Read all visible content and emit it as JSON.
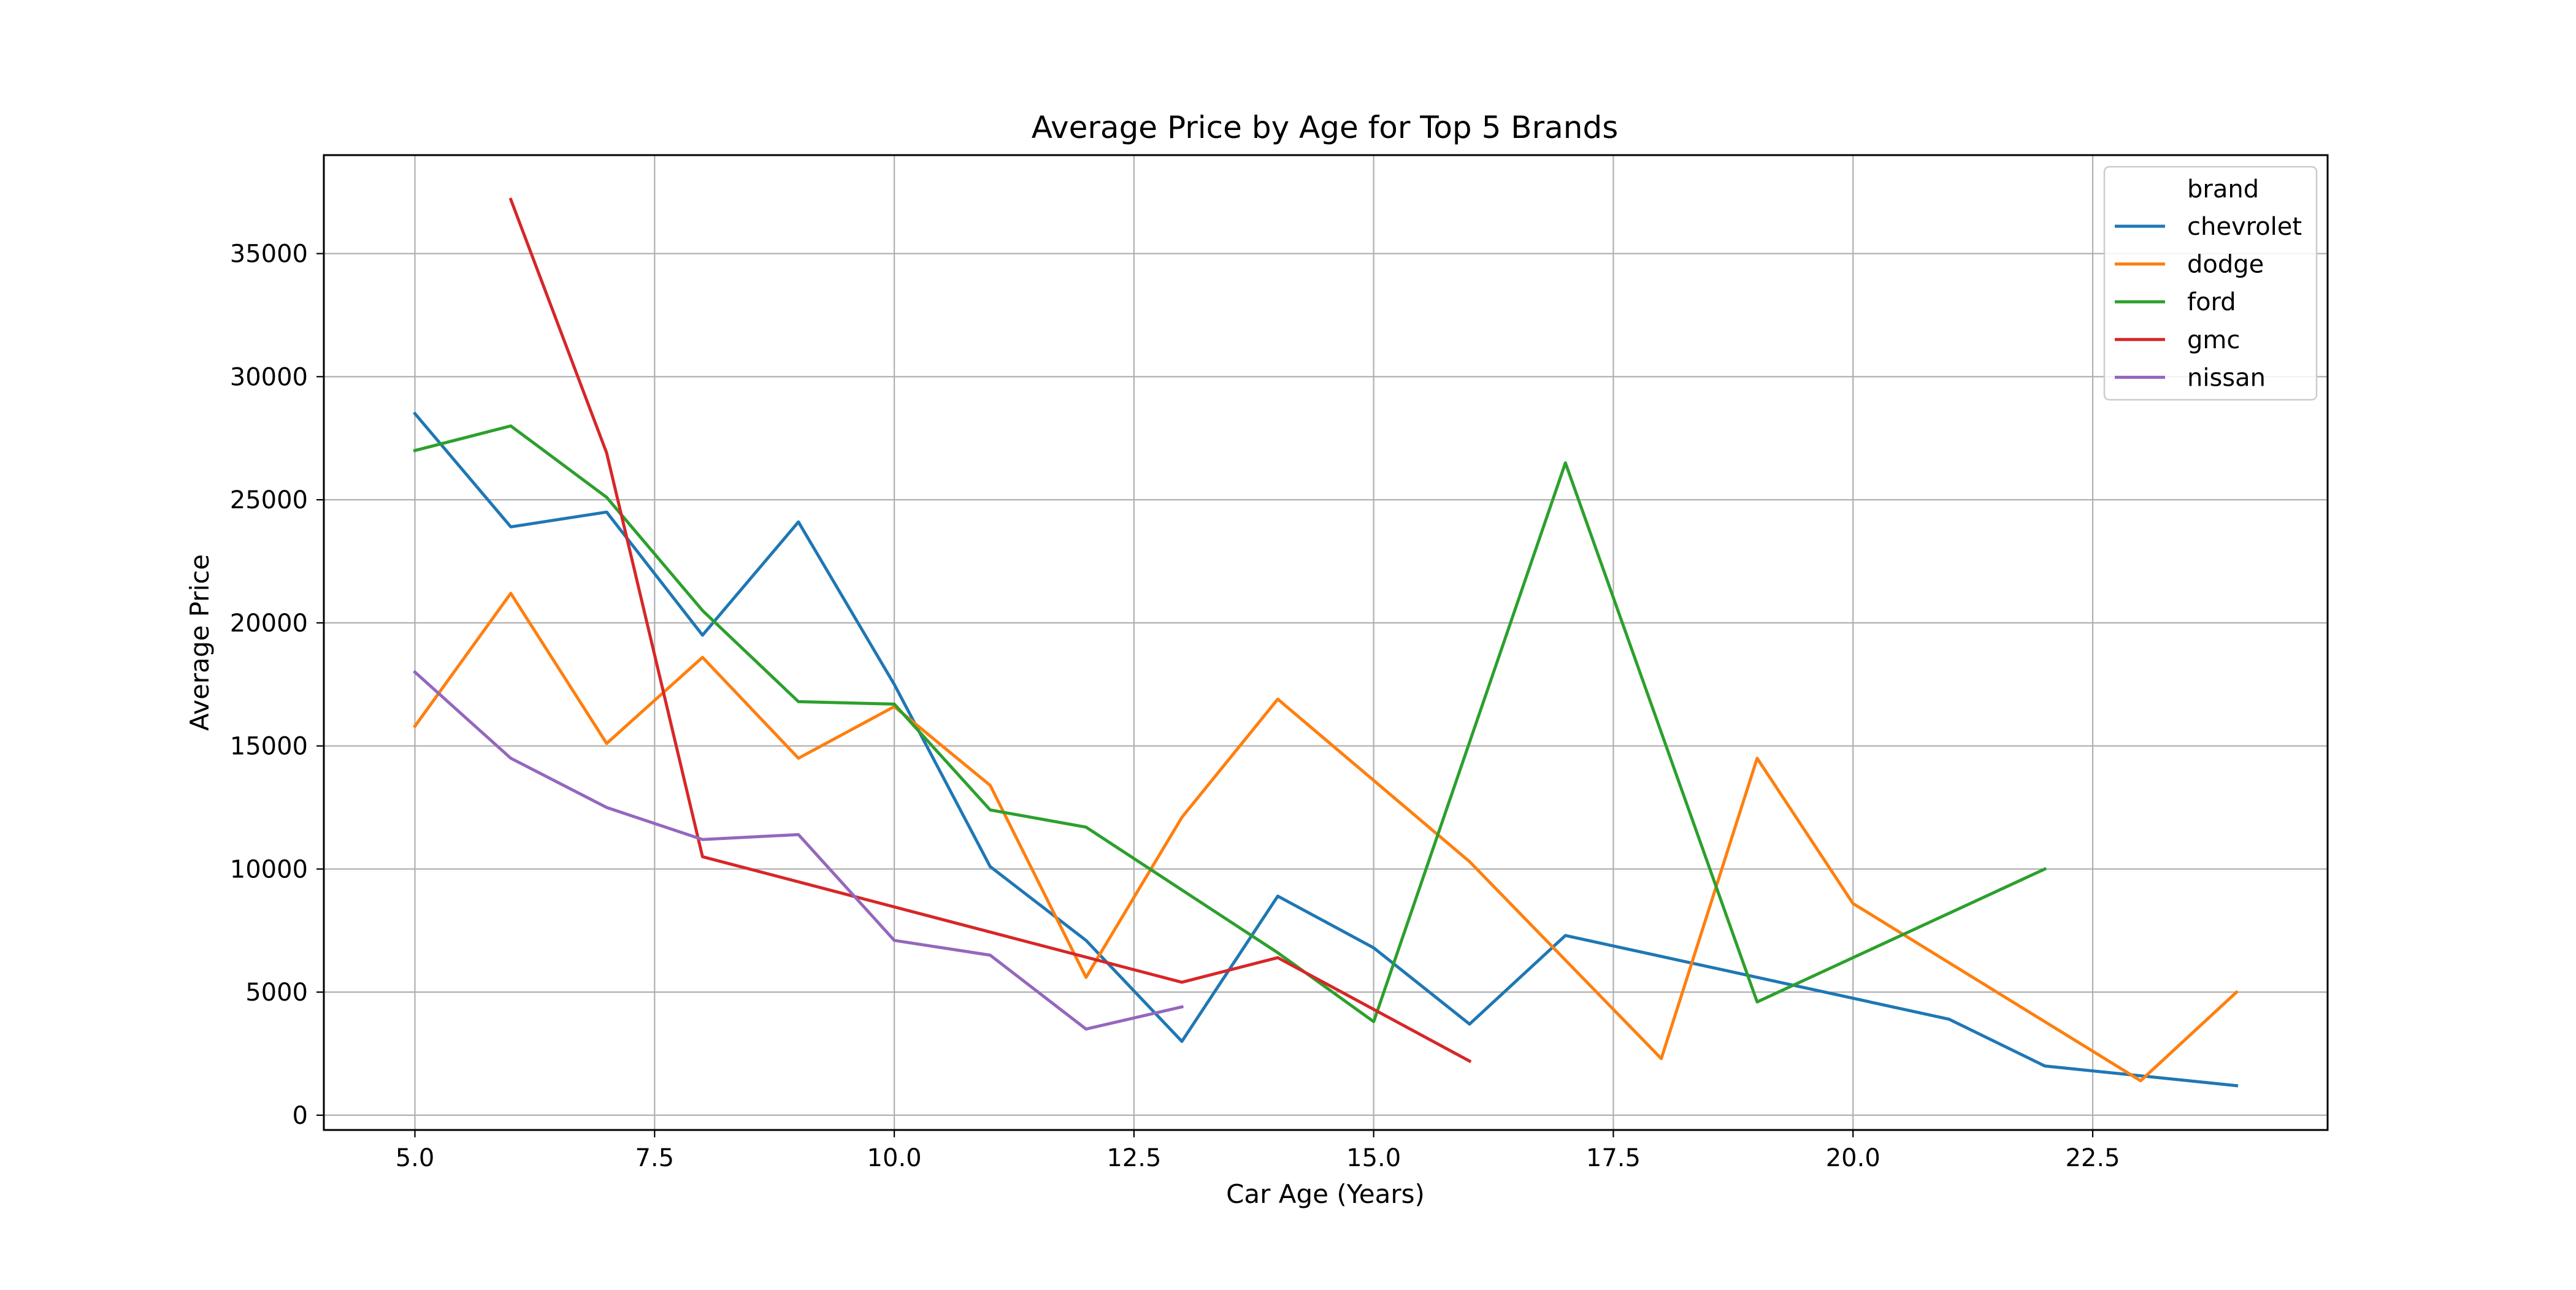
{
  "chart_data": {
    "type": "line",
    "title": "Average Price by Age for Top 5 Brands",
    "xlabel": "Car Age (Years)",
    "ylabel": "Average Price",
    "xlim": [
      4.05,
      24.95
    ],
    "ylim": [
      -600,
      39000
    ],
    "xticks": [
      5.0,
      7.5,
      10.0,
      12.5,
      15.0,
      17.5,
      20.0,
      22.5
    ],
    "xtick_labels": [
      "5.0",
      "7.5",
      "10.0",
      "12.5",
      "15.0",
      "17.5",
      "20.0",
      "22.5"
    ],
    "yticks": [
      0,
      5000,
      10000,
      15000,
      20000,
      25000,
      30000,
      35000
    ],
    "ytick_labels": [
      "0",
      "5000",
      "10000",
      "15000",
      "20000",
      "25000",
      "30000",
      "35000"
    ],
    "grid": true,
    "legend": {
      "title": "brand",
      "placement": "top-right"
    },
    "series": [
      {
        "name": "chevrolet",
        "color": "#1f77b4",
        "x": [
          5,
          6,
          7,
          8,
          9,
          10,
          11,
          12,
          13,
          14,
          15,
          16,
          17,
          21,
          22,
          24
        ],
        "y": [
          28500,
          23900,
          24500,
          19500,
          24100,
          17500,
          10100,
          7100,
          3000,
          8900,
          6800,
          3700,
          7300,
          3900,
          2000,
          1200
        ]
      },
      {
        "name": "dodge",
        "color": "#ff7f0e",
        "x": [
          5,
          6,
          7,
          8,
          9,
          10,
          11,
          12,
          13,
          14,
          16,
          18,
          19,
          20,
          23,
          24
        ],
        "y": [
          15800,
          21200,
          15100,
          18600,
          14500,
          16600,
          13400,
          5600,
          12100,
          16900,
          10300,
          2300,
          14500,
          8600,
          1400,
          5000
        ]
      },
      {
        "name": "ford",
        "color": "#2ca02c",
        "x": [
          5,
          6,
          7,
          8,
          9,
          10,
          11,
          12,
          14,
          15,
          17,
          19,
          22
        ],
        "y": [
          27000,
          28000,
          25100,
          20500,
          16800,
          16700,
          12400,
          11700,
          6600,
          3800,
          26500,
          4600,
          10000
        ]
      },
      {
        "name": "gmc",
        "color": "#d62728",
        "x": [
          6,
          7,
          8,
          13,
          14,
          16
        ],
        "y": [
          37200,
          26900,
          10500,
          5400,
          6400,
          2200
        ]
      },
      {
        "name": "nissan",
        "color": "#9467bd",
        "x": [
          5,
          6,
          7,
          8,
          9,
          10,
          11,
          12,
          13
        ],
        "y": [
          18000,
          14500,
          12500,
          11200,
          11400,
          7100,
          6500,
          3500,
          4400
        ]
      }
    ]
  }
}
